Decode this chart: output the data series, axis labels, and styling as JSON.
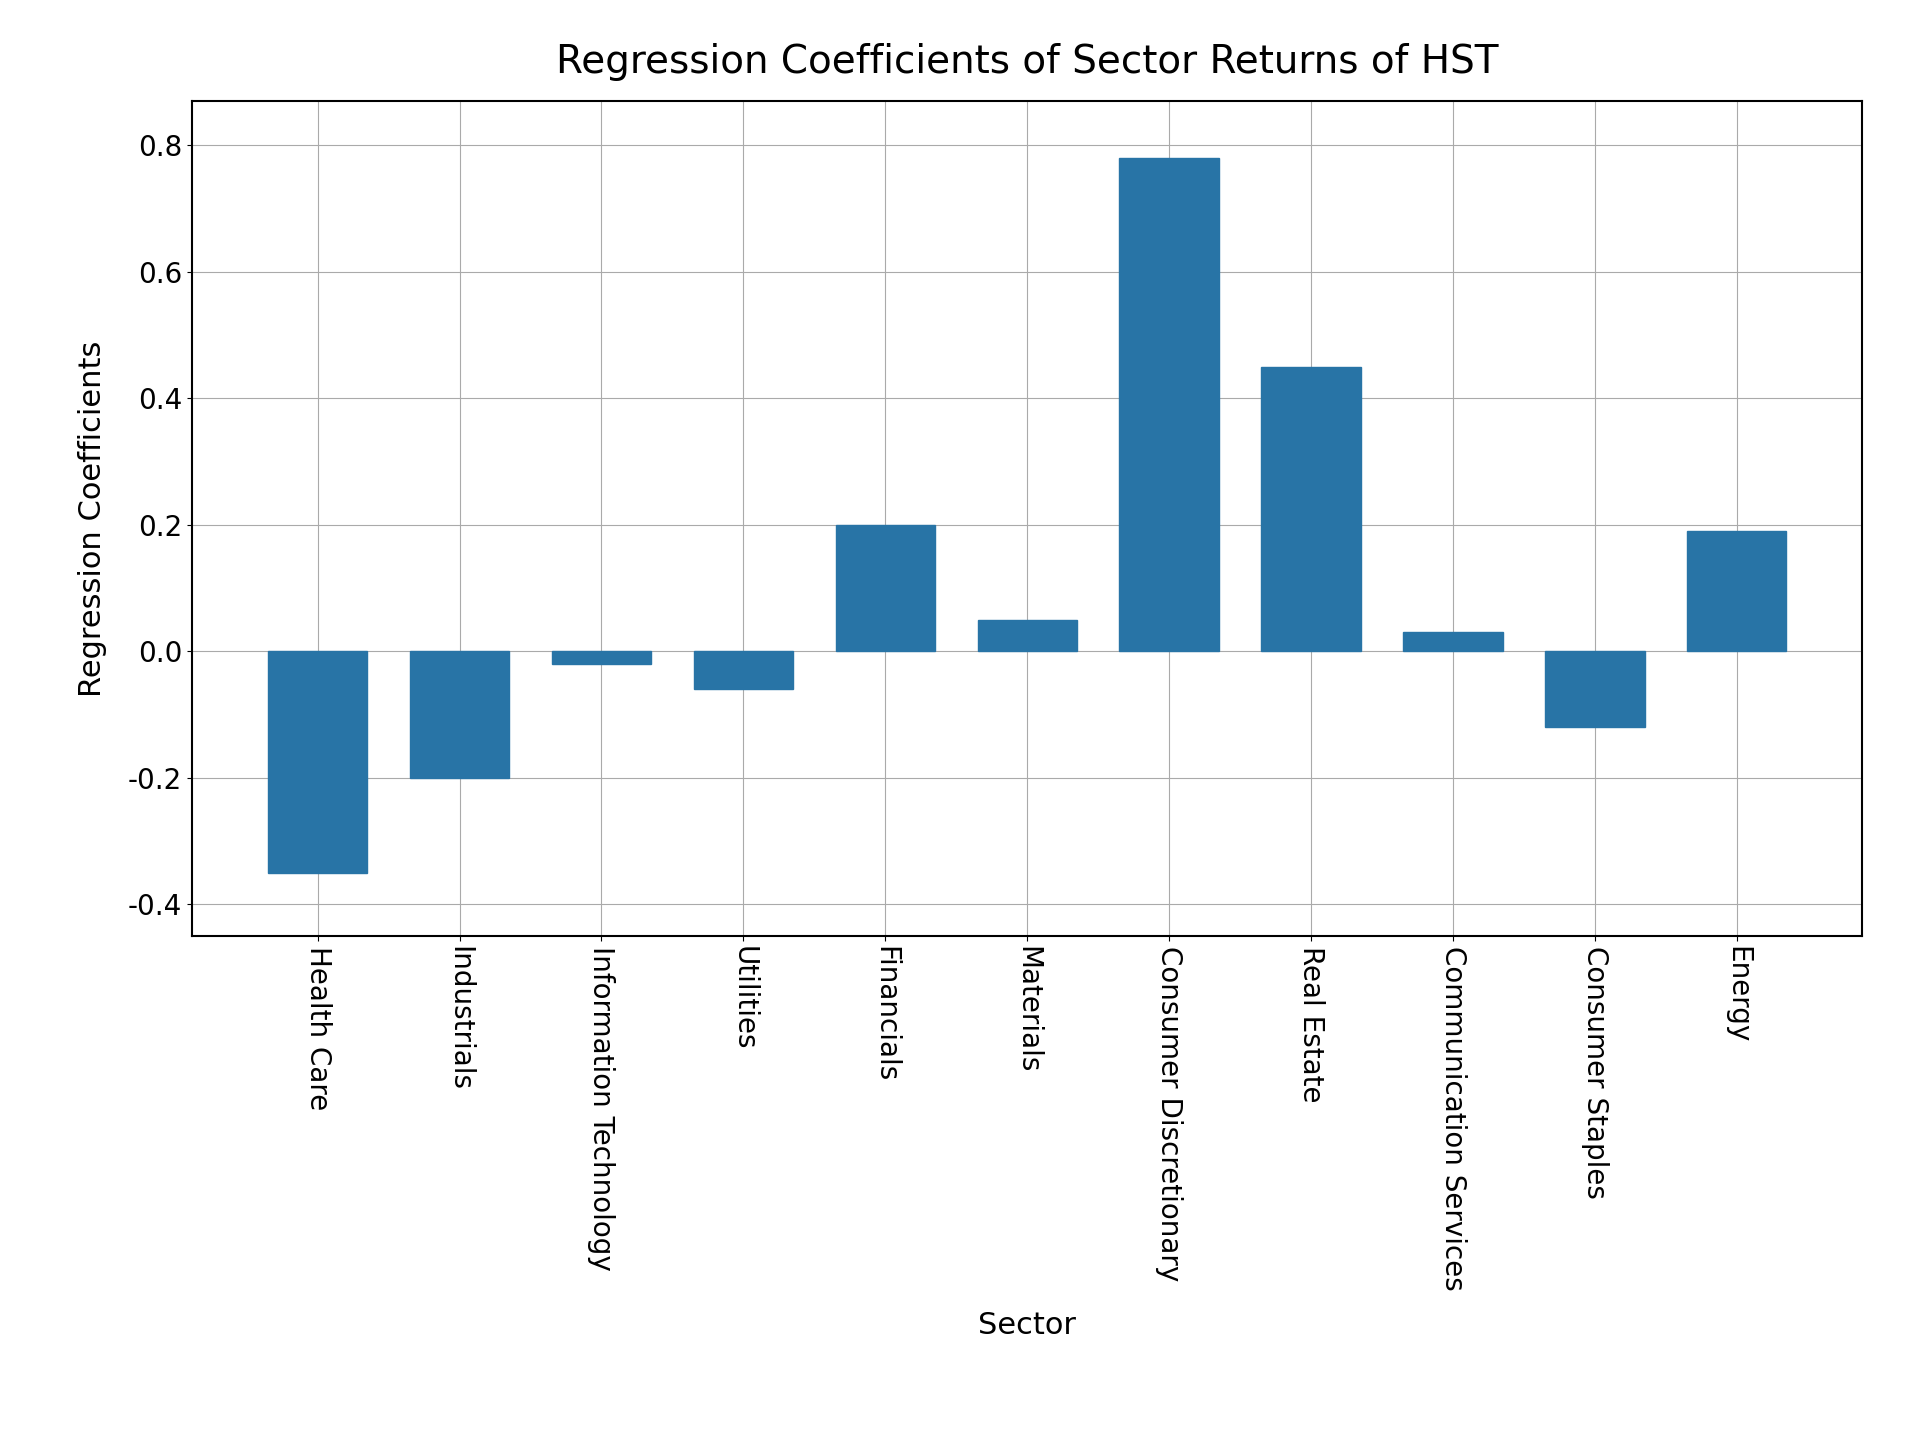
{
  "categories": [
    "Health Care",
    "Industrials",
    "Information Technology",
    "Utilities",
    "Financials",
    "Materials",
    "Consumer Discretionary",
    "Real Estate",
    "Communication Services",
    "Consumer Staples",
    "Energy"
  ],
  "values": [
    -0.35,
    -0.2,
    -0.02,
    -0.06,
    0.2,
    0.05,
    0.78,
    0.45,
    0.03,
    -0.12,
    0.19
  ],
  "bar_color": "#2874a6",
  "title": "Regression Coefficients of Sector Returns of HST",
  "xlabel": "Sector",
  "ylabel": "Regression Coefficients",
  "ylim": [
    -0.45,
    0.87
  ],
  "yticks": [
    -0.4,
    -0.2,
    0.0,
    0.2,
    0.4,
    0.6,
    0.8
  ],
  "title_fontsize": 28,
  "label_fontsize": 22,
  "tick_fontsize": 20,
  "background_color": "#ffffff",
  "grid_color": "#aaaaaa"
}
